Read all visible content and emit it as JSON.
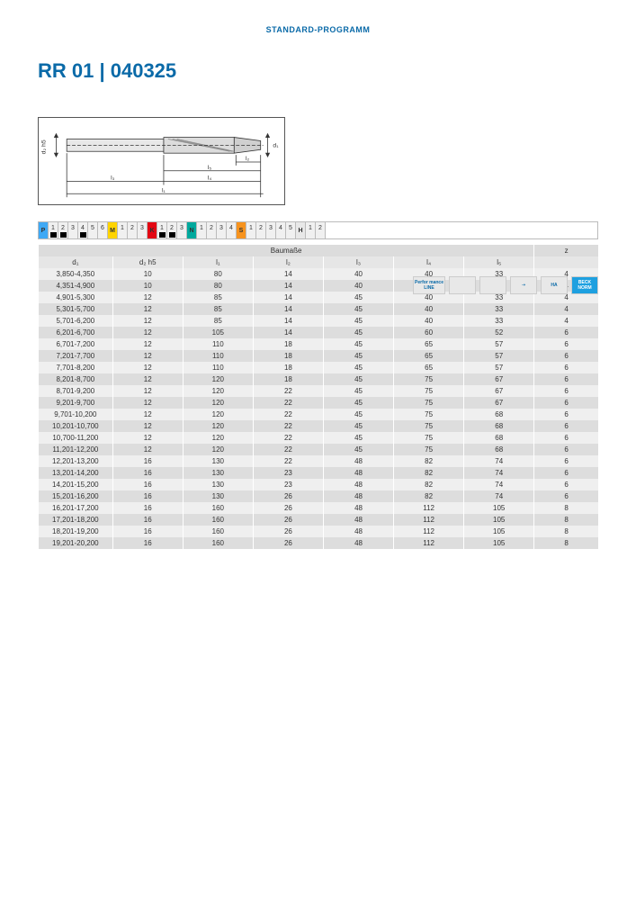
{
  "header": {
    "label": "STANDARD-PROGRAMM"
  },
  "title": "RR 01 | 040325",
  "materials": {
    "groups": [
      {
        "code": "P",
        "color": "#3fa9f5",
        "nums": [
          {
            "n": "1",
            "fill": true
          },
          {
            "n": "2",
            "fill": true
          },
          {
            "n": "3",
            "fill": false
          },
          {
            "n": "4",
            "fill": true
          },
          {
            "n": "5",
            "fill": false
          },
          {
            "n": "6",
            "fill": false
          }
        ]
      },
      {
        "code": "M",
        "color": "#ffd400",
        "nums": [
          {
            "n": "1",
            "fill": false
          },
          {
            "n": "2",
            "fill": false
          },
          {
            "n": "3",
            "fill": false
          }
        ]
      },
      {
        "code": "K",
        "color": "#e30613",
        "nums": [
          {
            "n": "1",
            "fill": true
          },
          {
            "n": "2",
            "fill": true
          },
          {
            "n": "3",
            "fill": false
          }
        ]
      },
      {
        "code": "N",
        "color": "#00a99d",
        "nums": [
          {
            "n": "1",
            "fill": false
          },
          {
            "n": "2",
            "fill": false
          },
          {
            "n": "3",
            "fill": false
          },
          {
            "n": "4",
            "fill": false
          }
        ]
      },
      {
        "code": "S",
        "color": "#f7931e",
        "nums": [
          {
            "n": "1",
            "fill": false
          },
          {
            "n": "2",
            "fill": false
          },
          {
            "n": "3",
            "fill": false
          },
          {
            "n": "4",
            "fill": false
          },
          {
            "n": "5",
            "fill": false
          }
        ]
      },
      {
        "code": "H",
        "color": "#e8e8e8",
        "nums": [
          {
            "n": "1",
            "fill": false
          },
          {
            "n": "2",
            "fill": false
          }
        ]
      }
    ]
  },
  "icons": {
    "perf": "Perfor\nmance\nLINE",
    "ha": "HA",
    "norm": "BECK\nNORM"
  },
  "table": {
    "header_group": "Baumaße",
    "header_z": "z",
    "columns": [
      "d₁",
      "d₂ h5",
      "l₁",
      "l₂",
      "l₃",
      "l₄",
      "l₅"
    ],
    "rows": [
      [
        "3,850-4,350",
        "10",
        "80",
        "14",
        "40",
        "40",
        "33",
        "4"
      ],
      [
        "4,351-4,900",
        "10",
        "80",
        "14",
        "40",
        "40",
        "33",
        "4"
      ],
      [
        "4,901-5,300",
        "12",
        "85",
        "14",
        "45",
        "40",
        "33",
        "4"
      ],
      [
        "5,301-5,700",
        "12",
        "85",
        "14",
        "45",
        "40",
        "33",
        "4"
      ],
      [
        "5,701-6,200",
        "12",
        "85",
        "14",
        "45",
        "40",
        "33",
        "4"
      ],
      [
        "6,201-6,700",
        "12",
        "105",
        "14",
        "45",
        "60",
        "52",
        "6"
      ],
      [
        "6,701-7,200",
        "12",
        "110",
        "18",
        "45",
        "65",
        "57",
        "6"
      ],
      [
        "7,201-7,700",
        "12",
        "110",
        "18",
        "45",
        "65",
        "57",
        "6"
      ],
      [
        "7,701-8,200",
        "12",
        "110",
        "18",
        "45",
        "65",
        "57",
        "6"
      ],
      [
        "8,201-8,700",
        "12",
        "120",
        "18",
        "45",
        "75",
        "67",
        "6"
      ],
      [
        "8,701-9,200",
        "12",
        "120",
        "22",
        "45",
        "75",
        "67",
        "6"
      ],
      [
        "9,201-9,700",
        "12",
        "120",
        "22",
        "45",
        "75",
        "67",
        "6"
      ],
      [
        "9,701-10,200",
        "12",
        "120",
        "22",
        "45",
        "75",
        "68",
        "6"
      ],
      [
        "10,201-10,700",
        "12",
        "120",
        "22",
        "45",
        "75",
        "68",
        "6"
      ],
      [
        "10,700-11,200",
        "12",
        "120",
        "22",
        "45",
        "75",
        "68",
        "6"
      ],
      [
        "11,201-12,200",
        "12",
        "120",
        "22",
        "45",
        "75",
        "68",
        "6"
      ],
      [
        "12,201-13,200",
        "16",
        "130",
        "22",
        "48",
        "82",
        "74",
        "6"
      ],
      [
        "13,201-14,200",
        "16",
        "130",
        "23",
        "48",
        "82",
        "74",
        "6"
      ],
      [
        "14,201-15,200",
        "16",
        "130",
        "23",
        "48",
        "82",
        "74",
        "6"
      ],
      [
        "15,201-16,200",
        "16",
        "130",
        "26",
        "48",
        "82",
        "74",
        "6"
      ],
      [
        "16,201-17,200",
        "16",
        "160",
        "26",
        "48",
        "112",
        "105",
        "8"
      ],
      [
        "17,201-18,200",
        "16",
        "160",
        "26",
        "48",
        "112",
        "105",
        "8"
      ],
      [
        "18,201-19,200",
        "16",
        "160",
        "26",
        "48",
        "112",
        "105",
        "8"
      ],
      [
        "19,201-20,200",
        "16",
        "160",
        "26",
        "48",
        "112",
        "105",
        "8"
      ]
    ]
  },
  "diagram_labels": {
    "d1": "d₁",
    "d2": "d₂ h5",
    "l1": "l₁",
    "l2": "l₂",
    "l3": "l₃",
    "l4": "l₄",
    "l5": "l₅"
  }
}
